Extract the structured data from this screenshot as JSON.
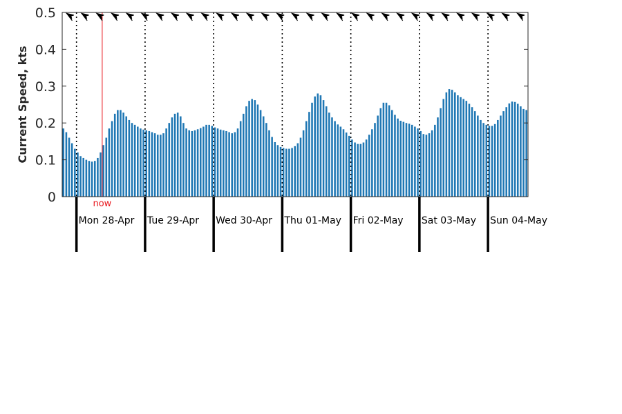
{
  "chart_data": {
    "type": "bar",
    "title": "",
    "ylabel": "Current Speed, kts",
    "xlabel": "",
    "ylim": [
      0,
      0.5
    ],
    "yticks": [
      "0",
      "0.1",
      "0.2",
      "0.3",
      "0.4",
      "0.5"
    ],
    "grid": false,
    "bar_color": "#1f77b4",
    "now_color": "#e8151b",
    "now_label": "now",
    "now_time_hours": 14,
    "start_time": "2025-04-27 19:00",
    "hours_per_bar": 1,
    "days": [
      "Mon 28-Apr",
      "Tue 29-Apr",
      "Wed 30-Apr",
      "Thu 01-May",
      "Fri 02-May",
      "Sat 03-May",
      "Sun 04-May"
    ],
    "midnight_hours": [
      5,
      29,
      53,
      77,
      101,
      125,
      149
    ],
    "values": [
      0.185,
      0.175,
      0.16,
      0.145,
      0.13,
      0.12,
      0.11,
      0.105,
      0.1,
      0.097,
      0.095,
      0.097,
      0.105,
      0.12,
      0.14,
      0.16,
      0.185,
      0.205,
      0.225,
      0.235,
      0.235,
      0.228,
      0.218,
      0.208,
      0.2,
      0.195,
      0.19,
      0.185,
      0.182,
      0.18,
      0.178,
      0.175,
      0.172,
      0.168,
      0.168,
      0.172,
      0.185,
      0.2,
      0.215,
      0.225,
      0.228,
      0.218,
      0.2,
      0.185,
      0.18,
      0.178,
      0.18,
      0.183,
      0.186,
      0.19,
      0.195,
      0.195,
      0.192,
      0.188,
      0.185,
      0.182,
      0.18,
      0.178,
      0.175,
      0.172,
      0.175,
      0.185,
      0.205,
      0.225,
      0.245,
      0.26,
      0.265,
      0.262,
      0.25,
      0.235,
      0.218,
      0.2,
      0.18,
      0.162,
      0.148,
      0.14,
      0.135,
      0.132,
      0.13,
      0.13,
      0.132,
      0.137,
      0.145,
      0.16,
      0.18,
      0.205,
      0.23,
      0.255,
      0.272,
      0.28,
      0.275,
      0.262,
      0.245,
      0.228,
      0.215,
      0.205,
      0.196,
      0.19,
      0.183,
      0.174,
      0.165,
      0.155,
      0.147,
      0.143,
      0.143,
      0.147,
      0.155,
      0.168,
      0.183,
      0.2,
      0.22,
      0.24,
      0.255,
      0.255,
      0.248,
      0.235,
      0.222,
      0.212,
      0.206,
      0.203,
      0.2,
      0.198,
      0.195,
      0.19,
      0.185,
      0.178,
      0.17,
      0.168,
      0.172,
      0.18,
      0.195,
      0.215,
      0.24,
      0.265,
      0.283,
      0.292,
      0.29,
      0.283,
      0.275,
      0.27,
      0.265,
      0.26,
      0.252,
      0.243,
      0.232,
      0.22,
      0.208,
      0.2,
      0.195,
      0.192,
      0.192,
      0.197,
      0.208,
      0.22,
      0.232,
      0.243,
      0.253,
      0.258,
      0.257,
      0.252,
      0.245,
      0.238,
      0.235
    ],
    "arrow_count": 31,
    "arrow_direction_deg": 300
  }
}
